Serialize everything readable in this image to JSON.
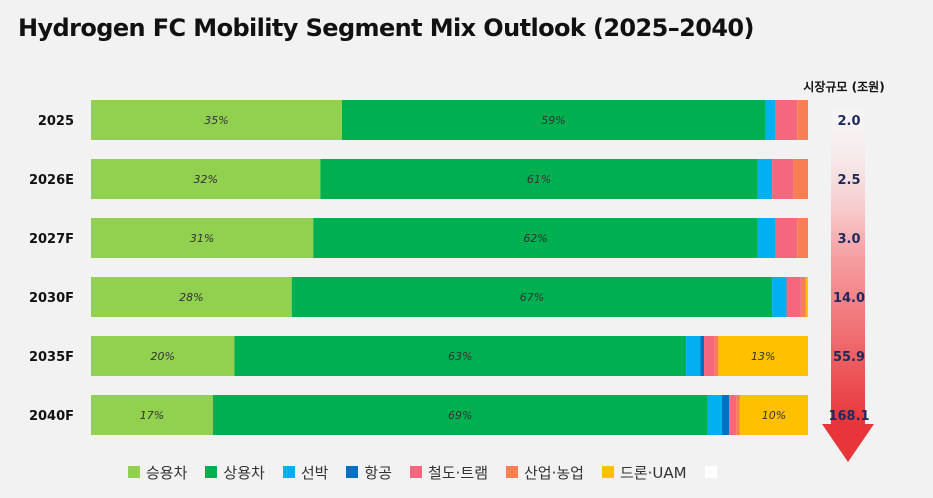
{
  "title": "Hydrogen FC Mobility Segment Mix Outlook (2025–2040)",
  "market_header": "시장규모 (조원)",
  "chart_data": {
    "type": "bar",
    "orientation": "horizontal-stacked-100",
    "categories": [
      "2025",
      "2026E",
      "2027F",
      "2030F",
      "2035F",
      "2040F"
    ],
    "series": [
      {
        "name": "승용차",
        "color": "#92d050",
        "values": [
          35,
          32,
          31,
          28,
          20,
          17
        ],
        "labels": [
          "35%",
          "32%",
          "31%",
          "28%",
          "20%",
          "17%"
        ]
      },
      {
        "name": "상용차",
        "color": "#00b050",
        "values": [
          59,
          61,
          62,
          67,
          63,
          69
        ],
        "labels": [
          "59%",
          "61%",
          "62%",
          "67%",
          "63%",
          "69%"
        ]
      },
      {
        "name": "선박",
        "color": "#00b0f0",
        "values": [
          1.5,
          2,
          2.5,
          2,
          2,
          2
        ],
        "labels": [
          "",
          "",
          "",
          "",
          "",
          ""
        ]
      },
      {
        "name": "항공",
        "color": "#0070c0",
        "values": [
          0,
          0,
          0,
          0,
          0.5,
          1
        ],
        "labels": [
          "",
          "",
          "",
          "",
          "",
          ""
        ]
      },
      {
        "name": "철도·트램",
        "color": "#f4677c",
        "values": [
          3,
          3,
          3,
          2,
          1.5,
          1
        ],
        "labels": [
          "",
          "",
          "",
          "",
          "",
          ""
        ]
      },
      {
        "name": "산업·농업",
        "color": "#f77f51",
        "values": [
          1.5,
          2,
          1.5,
          0.7,
          0.5,
          0.5
        ],
        "labels": [
          "",
          "",
          "",
          "",
          "",
          ""
        ]
      },
      {
        "name": "드론·UAM",
        "color": "#ffc000",
        "values": [
          0,
          0,
          0,
          0.3,
          12.5,
          9.5
        ],
        "labels": [
          "",
          "",
          "",
          "",
          "13%",
          "10%"
        ]
      },
      {
        "name": "",
        "color": "#ffffff",
        "values": [
          0,
          0,
          0,
          0,
          0,
          0
        ],
        "labels": [
          "",
          "",
          "",
          "",
          "",
          ""
        ]
      }
    ],
    "market_size": [
      "2.0",
      "2.5",
      "3.0",
      "14.0",
      "55.9",
      "168.1"
    ],
    "xlim": [
      0,
      100
    ],
    "legend_position": "bottom",
    "grid": false
  }
}
